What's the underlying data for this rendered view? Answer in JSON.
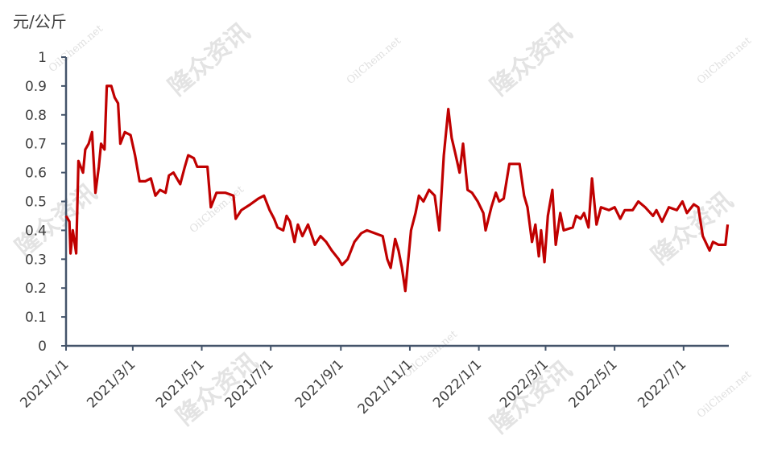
{
  "chart_data": {
    "type": "line",
    "y_label": "元/公斤",
    "watermark": "隆众资讯",
    "watermark_site": "OilChem.net",
    "color": "#c00000",
    "x": [
      "2021/1/1",
      "2021/1/4",
      "2021/1/5",
      "2021/1/7",
      "2021/1/10",
      "2021/1/12",
      "2021/1/16",
      "2021/1/18",
      "2021/1/21",
      "2021/1/24",
      "2021/1/27",
      "2021/1/30",
      "2021/2/1",
      "2021/2/4",
      "2021/2/6",
      "2021/2/10",
      "2021/2/13",
      "2021/2/16",
      "2021/2/18",
      "2021/2/22",
      "2021/2/27",
      "2021/3/3",
      "2021/3/7",
      "2021/3/12",
      "2021/3/17",
      "2021/3/21",
      "2021/3/25",
      "2021/3/30",
      "2021/4/2",
      "2021/4/6",
      "2021/4/9",
      "2021/4/12",
      "2021/4/16",
      "2021/4/19",
      "2021/4/24",
      "2021/4/27",
      "2021/5/6",
      "2021/5/9",
      "2021/5/14",
      "2021/5/22",
      "2021/5/29",
      "2021/5/31",
      "2021/6/5",
      "2021/6/13",
      "2021/6/20",
      "2021/6/25",
      "2021/6/30",
      "2021/7/4",
      "2021/7/7",
      "2021/7/12",
      "2021/7/15",
      "2021/7/18",
      "2021/7/22",
      "2021/7/25",
      "2021/7/29",
      "2021/8/3",
      "2021/8/9",
      "2021/8/14",
      "2021/8/19",
      "2021/8/24",
      "2021/8/30",
      "2021/9/2",
      "2021/9/7",
      "2021/9/13",
      "2021/9/19",
      "2021/9/24",
      "2021/10/1",
      "2021/10/8",
      "2021/10/12",
      "2021/10/15",
      "2021/10/19",
      "2021/10/22",
      "2021/10/25",
      "2021/10/28",
      "2021/11/2",
      "2021/11/6",
      "2021/11/9",
      "2021/11/13",
      "2021/11/18",
      "2021/11/23",
      "2021/11/27",
      "2021/12/1",
      "2021/12/5",
      "2021/12/8",
      "2021/12/11",
      "2021/12/15",
      "2021/12/18",
      "2021/12/22",
      "2021/12/26",
      "2021/12/31",
      "2022/1/5",
      "2022/1/7",
      "2022/1/12",
      "2022/1/16",
      "2022/1/19",
      "2022/1/23",
      "2022/1/28",
      "2022/2/6",
      "2022/2/10",
      "2022/2/13",
      "2022/2/17",
      "2022/2/20",
      "2022/2/23",
      "2022/2/25",
      "2022/2/28",
      "2022/3/3",
      "2022/3/7",
      "2022/3/10",
      "2022/3/14",
      "2022/3/17",
      "2022/3/25",
      "2022/3/28",
      "2022/4/1",
      "2022/4/4",
      "2022/4/8",
      "2022/4/11",
      "2022/4/15",
      "2022/4/19",
      "2022/4/26",
      "2022/5/1",
      "2022/5/6",
      "2022/5/10",
      "2022/5/17",
      "2022/5/22",
      "2022/5/28",
      "2022/6/4",
      "2022/6/7",
      "2022/6/12",
      "2022/6/18",
      "2022/6/25",
      "2022/6/30",
      "2022/7/4",
      "2022/7/10",
      "2022/7/14",
      "2022/7/18",
      "2022/7/24",
      "2022/7/27",
      "2022/8/1",
      "2022/8/7",
      "2022/8/9"
    ],
    "values": [
      0.45,
      0.43,
      0.32,
      0.4,
      0.32,
      0.64,
      0.6,
      0.68,
      0.7,
      0.74,
      0.53,
      0.62,
      0.7,
      0.68,
      0.9,
      0.9,
      0.86,
      0.84,
      0.7,
      0.74,
      0.73,
      0.66,
      0.57,
      0.57,
      0.58,
      0.52,
      0.54,
      0.53,
      0.59,
      0.6,
      0.58,
      0.56,
      0.62,
      0.66,
      0.65,
      0.62,
      0.62,
      0.48,
      0.53,
      0.53,
      0.52,
      0.44,
      0.47,
      0.49,
      0.51,
      0.52,
      0.47,
      0.44,
      0.41,
      0.4,
      0.45,
      0.43,
      0.36,
      0.42,
      0.38,
      0.42,
      0.35,
      0.38,
      0.36,
      0.33,
      0.3,
      0.28,
      0.3,
      0.36,
      0.39,
      0.4,
      0.39,
      0.38,
      0.3,
      0.27,
      0.37,
      0.33,
      0.27,
      0.19,
      0.4,
      0.46,
      0.52,
      0.5,
      0.54,
      0.52,
      0.4,
      0.66,
      0.82,
      0.72,
      0.67,
      0.6,
      0.7,
      0.54,
      0.53,
      0.5,
      0.46,
      0.4,
      0.48,
      0.53,
      0.5,
      0.51,
      0.63,
      0.63,
      0.52,
      0.48,
      0.36,
      0.42,
      0.31,
      0.4,
      0.29,
      0.45,
      0.54,
      0.35,
      0.46,
      0.4,
      0.41,
      0.45,
      0.44,
      0.46,
      0.41,
      0.58,
      0.42,
      0.48,
      0.47,
      0.48,
      0.44,
      0.47,
      0.47,
      0.5,
      0.48,
      0.45,
      0.47,
      0.43,
      0.48,
      0.47,
      0.5,
      0.46,
      0.49,
      0.48,
      0.38,
      0.33,
      0.36,
      0.35,
      0.35,
      0.42
    ],
    "xlim": [
      "2021/1/1",
      "2022/8/10"
    ],
    "xticks": [
      "2021/1/1",
      "2021/3/1",
      "2021/5/1",
      "2021/7/1",
      "2021/9/1",
      "2021/11/1",
      "2022/1/1",
      "2022/3/1",
      "2022/5/1",
      "2022/7/1"
    ],
    "ylim": [
      0,
      1
    ],
    "yticks": [
      0,
      0.1,
      0.2,
      0.3,
      0.4,
      0.5,
      0.6,
      0.7,
      0.8,
      0.9,
      1
    ]
  }
}
